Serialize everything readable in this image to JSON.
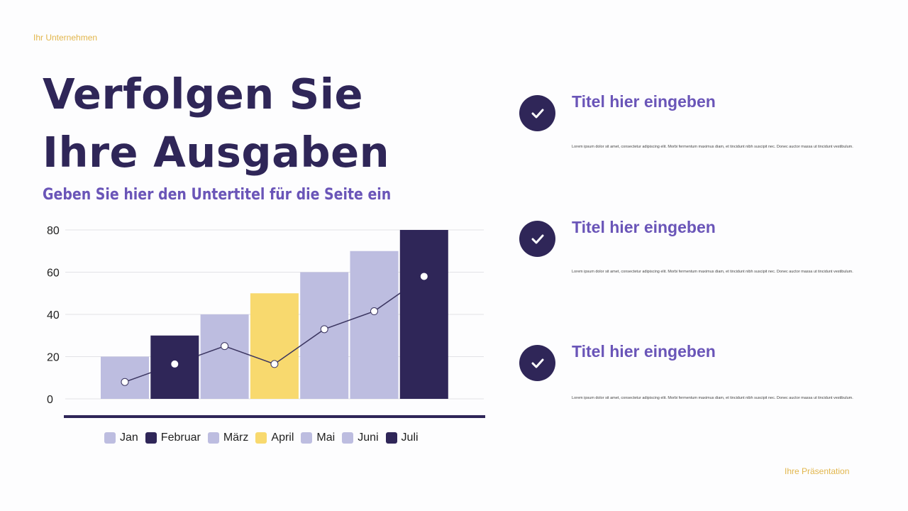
{
  "header": {
    "brand": "Ihr Unternehmen",
    "title_line1": "Verfolgen Sie",
    "title_line2": "Ihre Ausgaben",
    "subtitle": "Geben Sie hier den Untertitel für die Seite ein"
  },
  "footer": {
    "text": "Ihre Präsentation"
  },
  "items": [
    {
      "icon": "check-icon",
      "title": "Titel hier eingeben",
      "text": "Lorem ipsum dolor sit amet, consectetur adipiscing elit. Morbi fermentum maximus diam, et tincidunt nibh suscipit nec. Donec auctor massa ut tincidunt vestibulum."
    },
    {
      "icon": "check-icon",
      "title": "Titel hier eingeben",
      "text": "Lorem ipsum dolor sit amet, consectetur adipiscing elit. Morbi fermentum maximus diam, et tincidunt nibh suscipit nec. Donec auctor massa ut tincidunt vestibulum."
    },
    {
      "icon": "check-icon",
      "title": "Titel hier eingeben",
      "text": "Lorem ipsum dolor sit amet, consectetur adipiscing elit. Morbi fermentum maximus diam, et tincidunt nibh suscipit nec. Donec auctor massa ut tincidunt vestibulum."
    }
  ],
  "chart_data": {
    "type": "bar",
    "categories": [
      "Jan",
      "Februar",
      "März",
      "April",
      "Mai",
      "Juni",
      "Juli"
    ],
    "values": [
      20,
      30,
      40,
      50,
      60,
      70,
      80
    ],
    "bar_colors": [
      "#bdbde0",
      "#2f2658",
      "#bdbde0",
      "#f8d96e",
      "#bdbde0",
      "#bdbde0",
      "#2f2658"
    ],
    "line_values": [
      8,
      16.5,
      25,
      16.5,
      33,
      41.5,
      58
    ],
    "line_color": "#3b3560",
    "ylim": [
      0,
      80
    ],
    "yticks": [
      "0",
      "20",
      "40",
      "60",
      "80"
    ],
    "grid": true,
    "legend": "bottom"
  }
}
